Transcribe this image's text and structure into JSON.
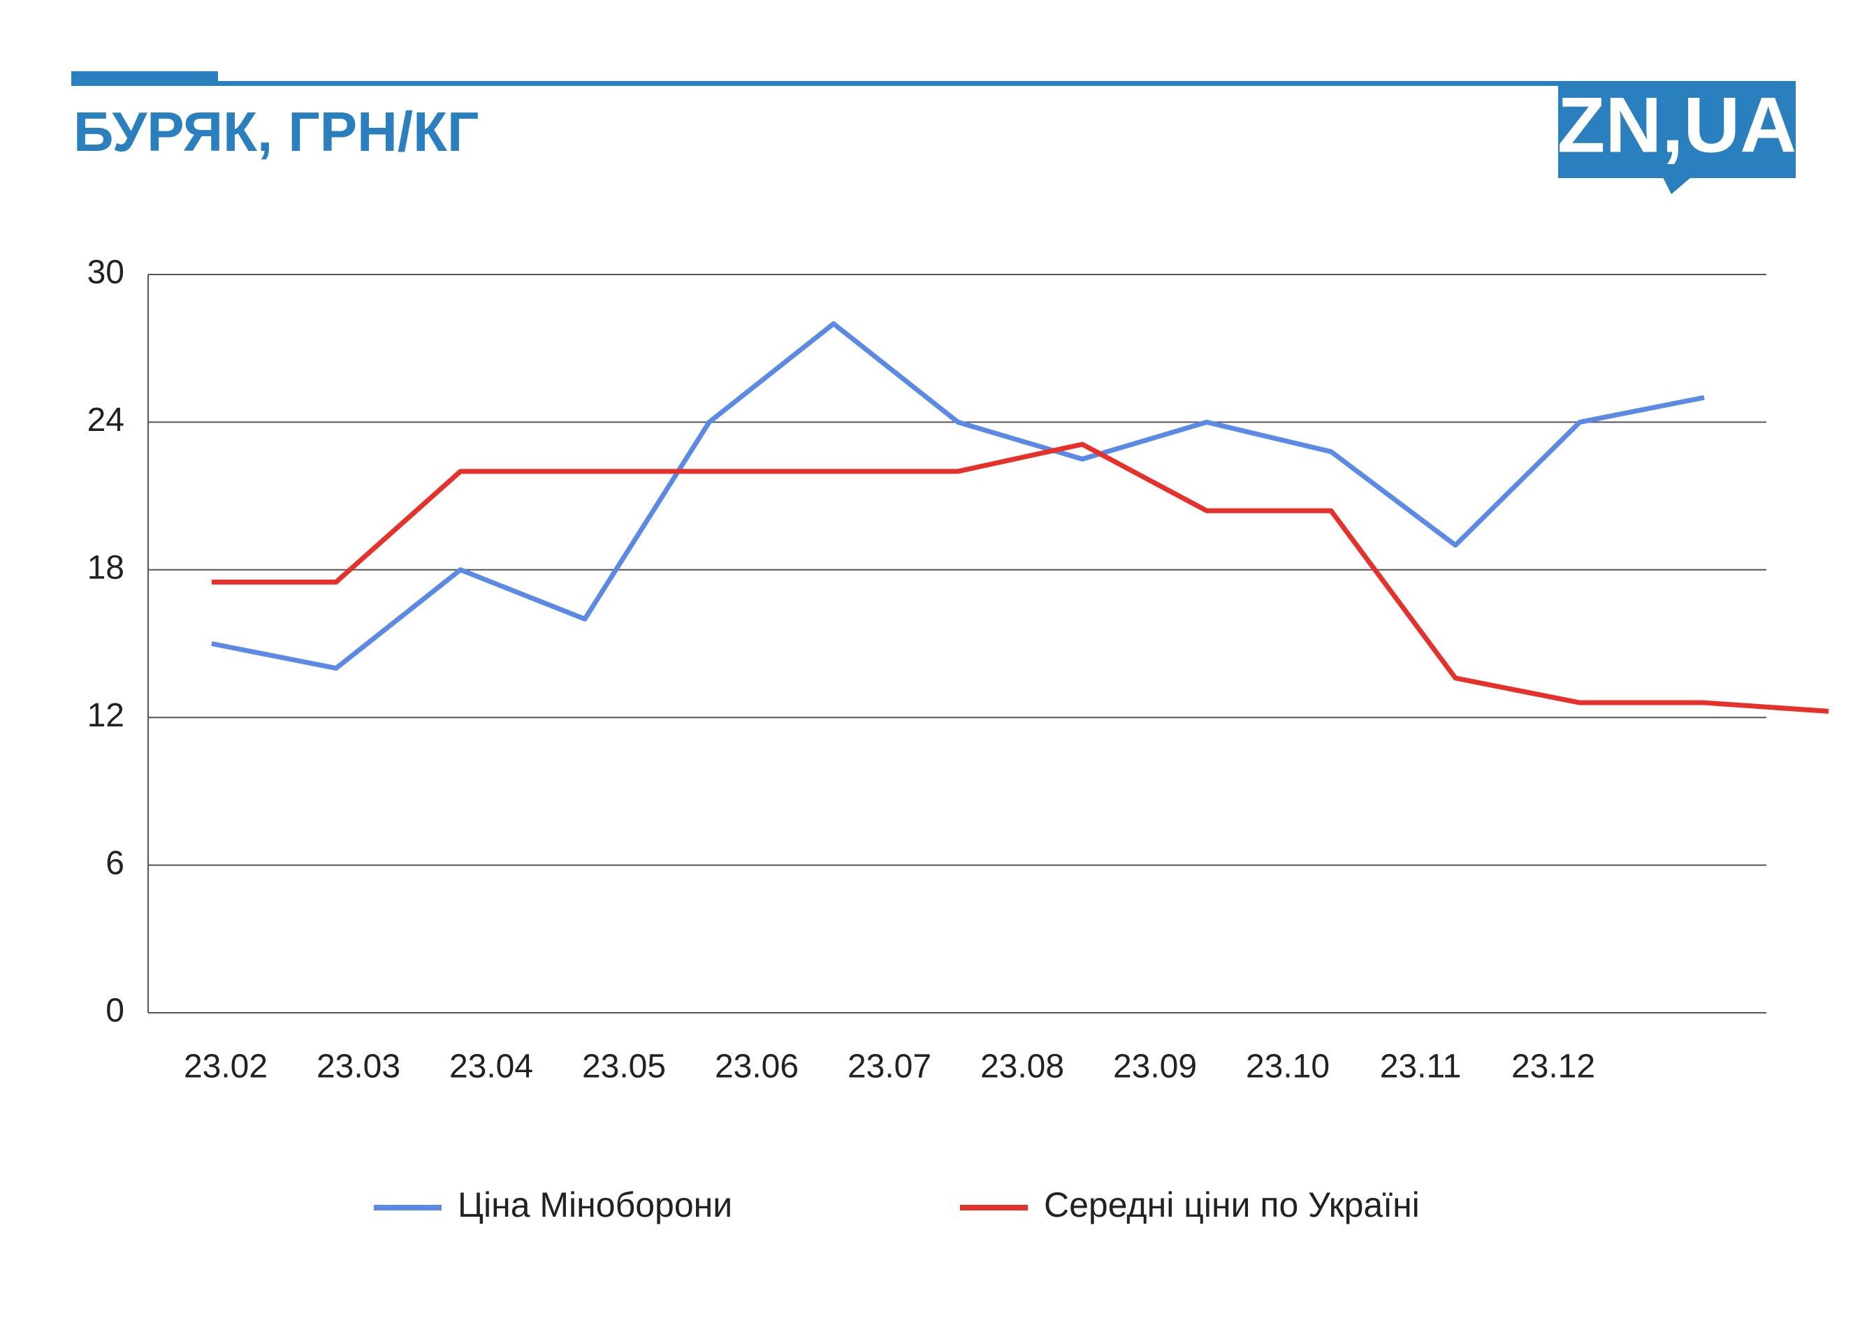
{
  "brand": "ZN,UA",
  "chart_data": {
    "type": "line",
    "title": "БУРЯК, ГРН/КГ",
    "x_labels": [
      "23.02",
      "23.03",
      "23.04",
      "23.05",
      "23.06",
      "23.07",
      "23.08",
      "23.09",
      "23.10",
      "23.11",
      "23.12"
    ],
    "series": [
      {
        "name": "Ціна Міноборони",
        "color": "#5a8ae6",
        "values": [
          15,
          14,
          18,
          16,
          24,
          28,
          24,
          22.5,
          24,
          22.8,
          19,
          24,
          25
        ]
      },
      {
        "name": "Середні ціни по Україні",
        "color": "#e8302a",
        "values": [
          17.5,
          17.5,
          22,
          22,
          22,
          22,
          22,
          23.1,
          20.4,
          20.4,
          13.6,
          12.6,
          12.6,
          12.25
        ]
      }
    ],
    "ylim": [
      0,
      30
    ],
    "yticks": [
      0,
      6,
      12,
      18,
      24,
      30
    ],
    "grid": true,
    "legend": "bottom"
  }
}
